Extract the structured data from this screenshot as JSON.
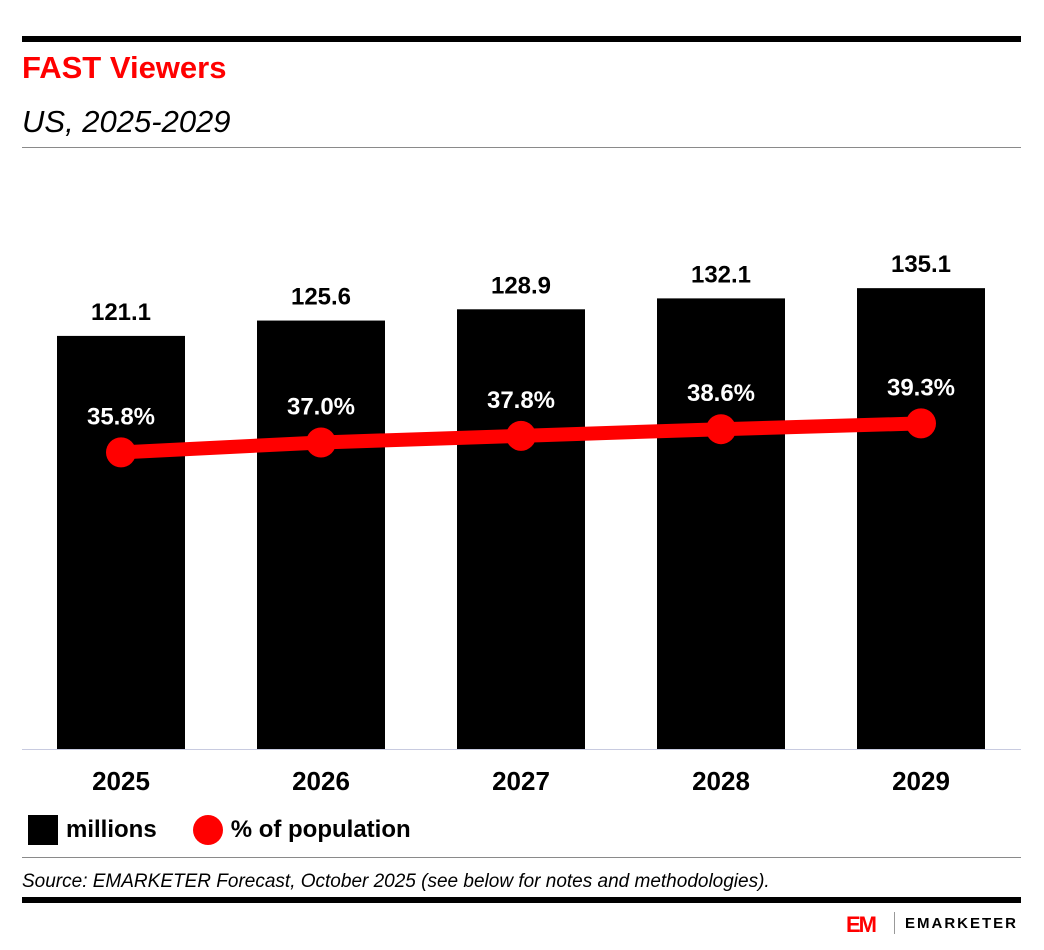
{
  "header": {
    "title": "FAST Viewers",
    "subtitle": "US, 2025-2029"
  },
  "chart_data": {
    "type": "bar+line",
    "categories": [
      "2025",
      "2026",
      "2027",
      "2028",
      "2029"
    ],
    "series": [
      {
        "name": "millions",
        "kind": "bar",
        "values": [
          121.1,
          125.6,
          128.9,
          132.1,
          135.1
        ],
        "labels": [
          "121.1",
          "125.6",
          "128.9",
          "132.1",
          "135.1"
        ]
      },
      {
        "name": "% of population",
        "kind": "line",
        "values": [
          35.8,
          37.0,
          37.8,
          38.6,
          39.3
        ],
        "labels": [
          "35.8%",
          "37.0%",
          "37.8%",
          "38.6%",
          "39.3%"
        ]
      }
    ],
    "bar_ylim": [
      0,
      175.6
    ],
    "line_ylim": [
      0,
      72.3
    ],
    "colors": {
      "bar": "#000000",
      "line": "#ff0000"
    }
  },
  "legend": {
    "bar_label": "millions",
    "line_label": "% of population"
  },
  "footer": {
    "source": "Source: EMARKETER Forecast, October 2025 (see below for notes and methodologies).",
    "brand": "EMARKETER",
    "brand_mark": "EM"
  }
}
